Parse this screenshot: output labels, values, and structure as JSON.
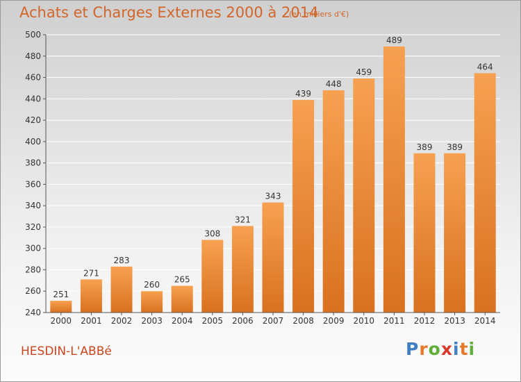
{
  "header": {
    "title": "Achats et Charges Externes 2000 à 2014",
    "subtitle": "(en milliers d'€)"
  },
  "footer": {
    "commune": "HESDIN-L'ABBé",
    "logo_text": "Proxiti"
  },
  "colors": {
    "bar_light": "#f6a150",
    "bar_dark": "#d9711f",
    "text": "#d2662a",
    "axis_text": "#333333",
    "grid": "#ffffff"
  },
  "chart_data": {
    "type": "bar",
    "categories": [
      "2000",
      "2001",
      "2002",
      "2003",
      "2004",
      "2005",
      "2006",
      "2007",
      "2008",
      "2009",
      "2010",
      "2011",
      "2012",
      "2013",
      "2014"
    ],
    "values": [
      251,
      271,
      283,
      260,
      265,
      308,
      321,
      343,
      439,
      448,
      459,
      489,
      389,
      389,
      464
    ],
    "title": "Achats et Charges Externes 2000 à 2014",
    "ylim": [
      240,
      500
    ],
    "yticks": [
      240,
      260,
      280,
      300,
      320,
      340,
      360,
      380,
      400,
      420,
      440,
      460,
      480,
      500
    ],
    "grid": true
  }
}
